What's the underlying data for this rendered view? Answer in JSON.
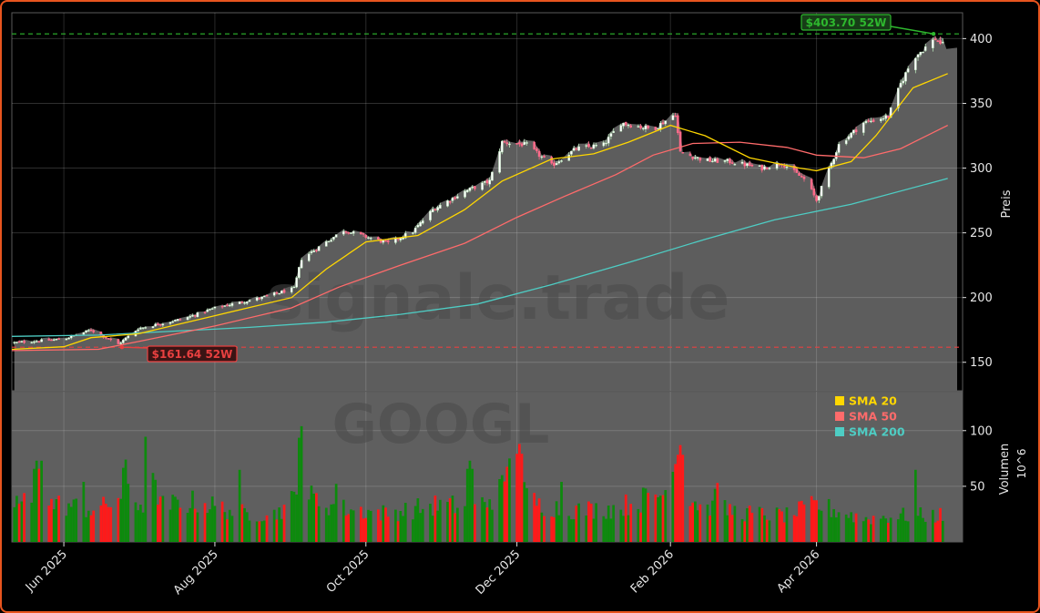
{
  "chart_data": {
    "type": "candlestick",
    "ticker": "GOOGL",
    "watermark": "signale.trade",
    "x_tick_labels": [
      "Jun 2025",
      "Aug 2025",
      "Oct 2025",
      "Dec 2025",
      "Feb 2026",
      "Apr 2026"
    ],
    "x_tick_dates": [
      "2025-06-01",
      "2025-08-01",
      "2025-10-01",
      "2025-12-01",
      "2026-02-01",
      "2026-04-01"
    ],
    "x_range": [
      "2025-05-11",
      "2026-05-30"
    ],
    "price_axis": {
      "label": "Preis",
      "ylim": [
        128,
        420
      ],
      "ticks": [
        150,
        200,
        250,
        300,
        350,
        400
      ]
    },
    "volume_axis": {
      "label": "Volumen",
      "unit": "10^6",
      "ylim": [
        0,
        135
      ],
      "ticks": [
        50,
        100
      ]
    },
    "high_52w": {
      "value": 403.7,
      "label": "$403.70 52W",
      "date": "2026-05-19",
      "color": "#2eb82e"
    },
    "low_52w": {
      "value": 161.64,
      "label": "$161.64 52W",
      "date": "2025-06-23",
      "color": "#e84040"
    },
    "legend": {
      "placement": "upper-right of volume panel",
      "items": [
        {
          "label": "SMA 20",
          "color": "#ffd700"
        },
        {
          "label": "SMA 50",
          "color": "#ff6b6b"
        },
        {
          "label": "SMA 200",
          "color": "#4ecdc4"
        }
      ]
    },
    "colors": {
      "up": "#0d8a0d",
      "down": "#ff1a1a",
      "area": "#626262",
      "background": "#000000",
      "border": "#e8541e"
    },
    "price_keypoints": [
      [
        "2025-05-11",
        165
      ],
      [
        "2025-06-01",
        168
      ],
      [
        "2025-06-12",
        175
      ],
      [
        "2025-06-23",
        164
      ],
      [
        "2025-07-01",
        176
      ],
      [
        "2025-07-20",
        184
      ],
      [
        "2025-08-01",
        192
      ],
      [
        "2025-08-20",
        200
      ],
      [
        "2025-09-02",
        207
      ],
      [
        "2025-09-05",
        230
      ],
      [
        "2025-09-22",
        252
      ],
      [
        "2025-10-10",
        242
      ],
      [
        "2025-10-20",
        251
      ],
      [
        "2025-10-28",
        268
      ],
      [
        "2025-11-10",
        282
      ],
      [
        "2025-11-20",
        290
      ],
      [
        "2025-11-25",
        320
      ],
      [
        "2025-12-05",
        318
      ],
      [
        "2025-12-15",
        302
      ],
      [
        "2025-12-25",
        315
      ],
      [
        "2026-01-05",
        318
      ],
      [
        "2026-01-12",
        335
      ],
      [
        "2026-01-25",
        330
      ],
      [
        "2026-02-03",
        342
      ],
      [
        "2026-02-05",
        312
      ],
      [
        "2026-02-15",
        306
      ],
      [
        "2026-02-25",
        305
      ],
      [
        "2026-03-10",
        300
      ],
      [
        "2026-03-18",
        304
      ],
      [
        "2026-03-28",
        290
      ],
      [
        "2026-04-01",
        275
      ],
      [
        "2026-04-10",
        318
      ],
      [
        "2026-04-20",
        335
      ],
      [
        "2026-04-30",
        340
      ],
      [
        "2026-05-05",
        365
      ],
      [
        "2026-05-10",
        385
      ],
      [
        "2026-05-19",
        400
      ],
      [
        "2026-05-24",
        392
      ]
    ],
    "sma20": [
      [
        "2025-05-11",
        160
      ],
      [
        "2025-06-01",
        162
      ],
      [
        "2025-06-12",
        169
      ],
      [
        "2025-07-01",
        172
      ],
      [
        "2025-08-01",
        186
      ],
      [
        "2025-09-01",
        200
      ],
      [
        "2025-09-15",
        222
      ],
      [
        "2025-10-01",
        243
      ],
      [
        "2025-10-22",
        248
      ],
      [
        "2025-11-10",
        268
      ],
      [
        "2025-11-25",
        290
      ],
      [
        "2025-12-15",
        307
      ],
      [
        "2026-01-01",
        311
      ],
      [
        "2026-01-15",
        320
      ],
      [
        "2026-02-01",
        333
      ],
      [
        "2026-02-15",
        325
      ],
      [
        "2026-03-05",
        308
      ],
      [
        "2026-03-25",
        300
      ],
      [
        "2026-04-01",
        298
      ],
      [
        "2026-04-15",
        305
      ],
      [
        "2026-04-25",
        325
      ],
      [
        "2026-05-10",
        362
      ],
      [
        "2026-05-24",
        373
      ]
    ],
    "sma50": [
      [
        "2025-05-11",
        159
      ],
      [
        "2025-06-15",
        160
      ],
      [
        "2025-07-01",
        166
      ],
      [
        "2025-08-01",
        178
      ],
      [
        "2025-09-01",
        192
      ],
      [
        "2025-09-20",
        208
      ],
      [
        "2025-10-15",
        225
      ],
      [
        "2025-11-10",
        242
      ],
      [
        "2025-12-01",
        262
      ],
      [
        "2025-12-20",
        278
      ],
      [
        "2026-01-10",
        295
      ],
      [
        "2026-01-25",
        310
      ],
      [
        "2026-02-10",
        319
      ],
      [
        "2026-03-01",
        320
      ],
      [
        "2026-03-20",
        316
      ],
      [
        "2026-04-01",
        310
      ],
      [
        "2026-04-20",
        308
      ],
      [
        "2026-05-05",
        315
      ],
      [
        "2026-05-24",
        333
      ]
    ],
    "sma200": [
      [
        "2025-05-11",
        170
      ],
      [
        "2025-06-15",
        171
      ],
      [
        "2025-07-15",
        174
      ],
      [
        "2025-08-15",
        177
      ],
      [
        "2025-09-15",
        181
      ],
      [
        "2025-10-15",
        187
      ],
      [
        "2025-11-15",
        195
      ],
      [
        "2025-12-15",
        210
      ],
      [
        "2026-01-15",
        227
      ],
      [
        "2026-02-15",
        245
      ],
      [
        "2026-03-15",
        260
      ],
      [
        "2026-04-15",
        272
      ],
      [
        "2026-05-24",
        292
      ]
    ],
    "volume_keypoints": [
      [
        "2025-05-11",
        38
      ],
      [
        "2025-06-01",
        35
      ],
      [
        "2025-06-15",
        30
      ],
      [
        "2025-06-25",
        45
      ],
      [
        "2025-07-05",
        33
      ],
      [
        "2025-07-25",
        38
      ],
      [
        "2025-08-10",
        28
      ],
      [
        "2025-08-25",
        26
      ],
      [
        "2025-09-05",
        45
      ],
      [
        "2025-09-20",
        32
      ],
      [
        "2025-10-10",
        27
      ],
      [
        "2025-10-30",
        35
      ],
      [
        "2025-11-15",
        33
      ],
      [
        "2025-11-28",
        55
      ],
      [
        "2025-12-10",
        35
      ],
      [
        "2025-12-25",
        30
      ],
      [
        "2026-01-10",
        32
      ],
      [
        "2026-02-03",
        50
      ],
      [
        "2026-02-15",
        33
      ],
      [
        "2026-03-05",
        27
      ],
      [
        "2026-03-20",
        25
      ],
      [
        "2026-04-01",
        35
      ],
      [
        "2026-04-20",
        22
      ],
      [
        "2026-05-05",
        25
      ],
      [
        "2026-05-24",
        25
      ]
    ],
    "volume_spikes": [
      [
        "2025-05-21",
        73
      ],
      [
        "2025-05-23",
        73
      ],
      [
        "2025-06-08",
        60
      ],
      [
        "2025-06-26",
        74
      ],
      [
        "2025-06-28",
        58
      ],
      [
        "2025-07-05",
        105
      ],
      [
        "2025-07-07",
        62
      ],
      [
        "2025-08-10",
        72
      ],
      [
        "2025-09-05",
        104
      ],
      [
        "2025-09-20",
        58
      ],
      [
        "2025-11-12",
        73
      ],
      [
        "2025-11-28",
        75
      ],
      [
        "2025-12-02",
        88
      ],
      [
        "2025-12-20",
        60
      ],
      [
        "2026-02-03",
        70
      ],
      [
        "2026-02-05",
        87
      ],
      [
        "2026-02-20",
        53
      ],
      [
        "2026-05-10",
        72
      ]
    ]
  }
}
